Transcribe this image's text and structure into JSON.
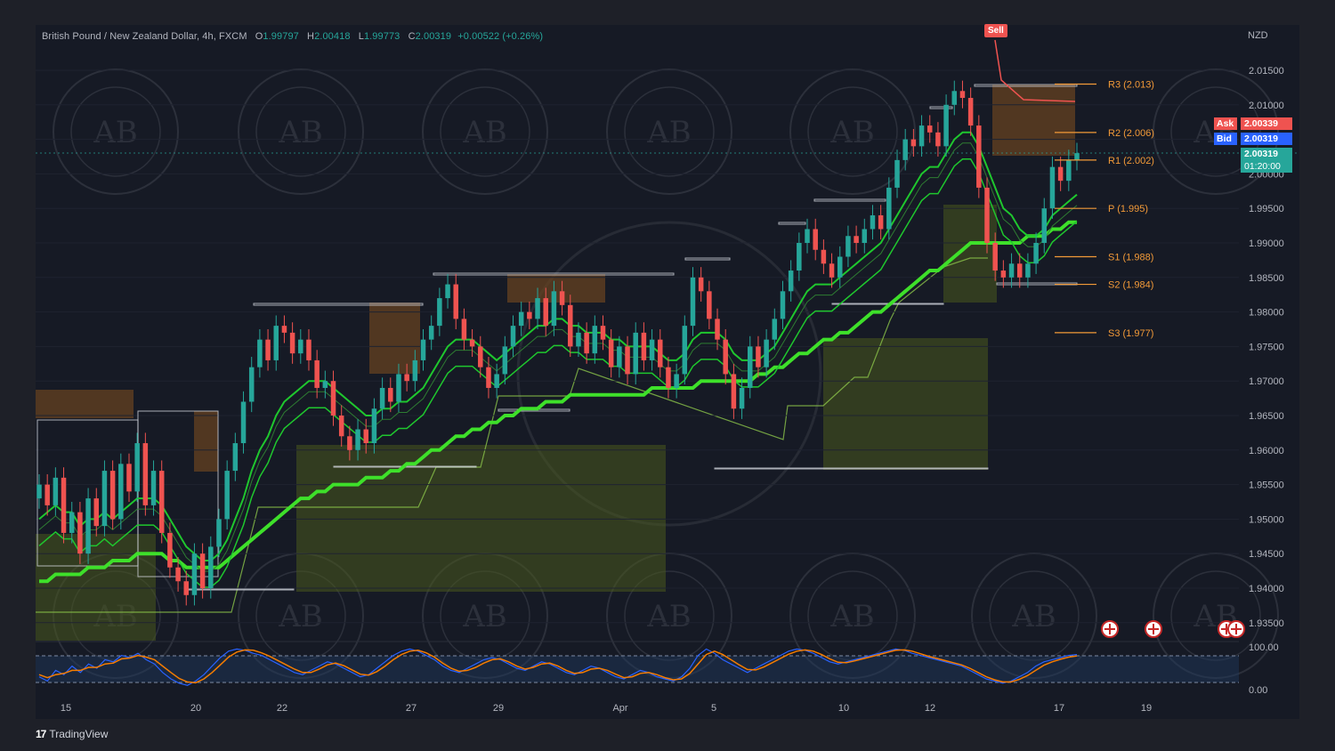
{
  "header": {
    "symbol": "British Pound / New Zealand Dollar, 4h, FXCM",
    "open_label": "O",
    "open": "1.99797",
    "high_label": "H",
    "high": "2.00418",
    "low_label": "L",
    "low": "1.99773",
    "close_label": "C",
    "close": "2.00319",
    "change": "+0.00522 (+0.26%)"
  },
  "currency": "NZD",
  "price_tags": {
    "ask_label": "Ask",
    "ask": "2.00339",
    "bid_label": "Bid",
    "bid": "2.00319",
    "last": "2.00319",
    "countdown": "01:20:00"
  },
  "sell_label": "Sell",
  "branding": {
    "logo_mark": "17",
    "name": "TradingView"
  },
  "watermark": {
    "text": "AB"
  },
  "colors": {
    "up": "#26a69a",
    "down": "#ef5350",
    "ema_fast": "#1fc72e",
    "ema_slow": "#3ee02a",
    "pivot": "#f29a38",
    "cloud_green": "#4a5a1e",
    "cloud_brown": "#6b4420",
    "stoch_k": "#2962ff",
    "stoch_d": "#f57c00"
  },
  "chart_data": {
    "type": "candlestick",
    "y_ticks": [
      "2.01500",
      "2.01000",
      "2.00500",
      "2.00000",
      "1.99500",
      "1.99000",
      "1.98500",
      "1.98000",
      "1.97500",
      "1.97000",
      "1.96500",
      "1.96000",
      "1.95500",
      "1.95000",
      "1.94500",
      "1.94000",
      "1.93500"
    ],
    "ylim": [
      1.932,
      2.0185
    ],
    "x_ticks": [
      "15",
      "20",
      "22",
      "27",
      "29",
      "Apr",
      "5",
      "10",
      "12",
      "17",
      "19"
    ],
    "pivots": [
      {
        "label": "R3 (2.013)",
        "value": 2.013
      },
      {
        "label": "R2 (2.006)",
        "value": 2.006
      },
      {
        "label": "R1 (2.002)",
        "value": 2.002
      },
      {
        "label": "P (1.995)",
        "value": 1.995
      },
      {
        "label": "S1 (1.988)",
        "value": 1.988
      },
      {
        "label": "S2 (1.984)",
        "value": 1.984
      },
      {
        "label": "S3 (1.977)",
        "value": 1.977
      }
    ],
    "price_path": [
      1.955,
      1.952,
      1.956,
      1.948,
      1.951,
      1.945,
      1.953,
      1.949,
      1.957,
      1.95,
      1.958,
      1.954,
      1.961,
      1.952,
      1.957,
      1.948,
      1.943,
      1.941,
      1.939,
      1.945,
      1.94,
      1.946,
      1.95,
      1.957,
      1.961,
      1.967,
      1.972,
      1.976,
      1.973,
      1.978,
      1.977,
      1.974,
      1.976,
      1.973,
      1.969,
      1.97,
      1.965,
      1.962,
      1.96,
      1.963,
      1.961,
      1.966,
      1.969,
      1.967,
      1.971,
      1.97,
      1.973,
      1.976,
      1.978,
      1.982,
      1.984,
      1.979,
      1.976,
      1.975,
      1.972,
      1.969,
      1.971,
      1.975,
      1.978,
      1.98,
      1.979,
      1.982,
      1.978,
      1.983,
      1.981,
      1.975,
      1.977,
      1.974,
      1.978,
      1.976,
      1.972,
      1.975,
      1.971,
      1.977,
      1.973,
      1.976,
      1.972,
      1.969,
      1.971,
      1.978,
      1.985,
      1.983,
      1.979,
      1.976,
      1.971,
      1.966,
      1.969,
      1.975,
      1.972,
      1.976,
      1.979,
      1.983,
      1.986,
      1.99,
      1.992,
      1.989,
      1.987,
      1.985,
      1.988,
      1.991,
      1.99,
      1.992,
      1.994,
      1.992,
      1.998,
      2.002,
      2.005,
      2.004,
      2.007,
      2.006,
      2.004,
      2.01,
      2.012,
      2.011,
      2.007,
      1.998,
      1.99,
      1.986,
      1.985,
      1.987,
      1.985,
      1.987,
      1.99,
      1.995,
      2.001,
      1.999,
      2.002,
      2.003
    ],
    "ema_fast": [
      1.95,
      1.951,
      1.952,
      1.951,
      1.951,
      1.949,
      1.95,
      1.95,
      1.951,
      1.95,
      1.951,
      1.952,
      1.953,
      1.953,
      1.953,
      1.952,
      1.95,
      1.948,
      1.946,
      1.945,
      1.944,
      1.944,
      1.945,
      1.947,
      1.95,
      1.953,
      1.957,
      1.96,
      1.962,
      1.965,
      1.967,
      1.968,
      1.969,
      1.97,
      1.97,
      1.97,
      1.969,
      1.968,
      1.967,
      1.966,
      1.965,
      1.965,
      1.966,
      1.966,
      1.967,
      1.967,
      1.968,
      1.969,
      1.971,
      1.973,
      1.975,
      1.976,
      1.976,
      1.976,
      1.975,
      1.974,
      1.973,
      1.974,
      1.975,
      1.976,
      1.977,
      1.978,
      1.978,
      1.979,
      1.979,
      1.978,
      1.978,
      1.977,
      1.977,
      1.977,
      1.976,
      1.976,
      1.975,
      1.975,
      1.975,
      1.975,
      1.974,
      1.973,
      1.973,
      1.974,
      1.976,
      1.977,
      1.977,
      1.977,
      1.976,
      1.974,
      1.973,
      1.973,
      1.973,
      1.974,
      1.975,
      1.977,
      1.979,
      1.981,
      1.983,
      1.984,
      1.984,
      1.984,
      1.985,
      1.986,
      1.987,
      1.988,
      1.989,
      1.99,
      1.992,
      1.994,
      1.996,
      1.998,
      2.0,
      2.001,
      2.001,
      2.003,
      2.005,
      2.006,
      2.006,
      2.004,
      2.001,
      1.998,
      1.995,
      1.994,
      1.992,
      1.991,
      1.991,
      1.992,
      1.994,
      1.995,
      1.996,
      1.997
    ],
    "ema_slow": [
      1.941,
      1.941,
      1.942,
      1.942,
      1.942,
      1.942,
      1.943,
      1.943,
      1.943,
      1.944,
      1.944,
      1.944,
      1.945,
      1.945,
      1.945,
      1.945,
      1.944,
      1.944,
      1.943,
      1.943,
      1.943,
      1.943,
      1.943,
      1.944,
      1.945,
      1.946,
      1.947,
      1.948,
      1.949,
      1.95,
      1.951,
      1.952,
      1.953,
      1.953,
      1.954,
      1.954,
      1.955,
      1.955,
      1.955,
      1.955,
      1.956,
      1.956,
      1.956,
      1.957,
      1.957,
      1.958,
      1.958,
      1.959,
      1.96,
      1.96,
      1.961,
      1.962,
      1.962,
      1.963,
      1.963,
      1.964,
      1.964,
      1.965,
      1.965,
      1.966,
      1.966,
      1.966,
      1.967,
      1.967,
      1.967,
      1.968,
      1.968,
      1.968,
      1.968,
      1.968,
      1.968,
      1.968,
      1.968,
      1.968,
      1.968,
      1.969,
      1.969,
      1.969,
      1.969,
      1.969,
      1.969,
      1.97,
      1.97,
      1.97,
      1.97,
      1.97,
      1.97,
      1.97,
      1.971,
      1.971,
      1.972,
      1.972,
      1.973,
      1.974,
      1.974,
      1.975,
      1.976,
      1.976,
      1.977,
      1.977,
      1.978,
      1.979,
      1.98,
      1.98,
      1.981,
      1.982,
      1.983,
      1.984,
      1.985,
      1.986,
      1.986,
      1.987,
      1.988,
      1.989,
      1.99,
      1.99,
      1.99,
      1.99,
      1.99,
      1.99,
      1.99,
      1.991,
      1.991,
      1.991,
      1.992,
      1.992,
      1.993,
      1.993
    ],
    "stochastic": {
      "ylim": [
        0,
        100
      ],
      "y_ticks": [
        "100.00",
        "0.00"
      ],
      "k_values": [
        30,
        20,
        45,
        35,
        55,
        40,
        60,
        50,
        70,
        65,
        80,
        75,
        85,
        70,
        60,
        40,
        25,
        15,
        10,
        20,
        35,
        55,
        75,
        90,
        95,
        92,
        85,
        80,
        70,
        60,
        50,
        40,
        35,
        45,
        55,
        65,
        60,
        50,
        40,
        30,
        35,
        50,
        65,
        80,
        90,
        95,
        90,
        80,
        70,
        55,
        45,
        40,
        50,
        60,
        70,
        75,
        70,
        60,
        50,
        45,
        55,
        65,
        60,
        50,
        40,
        35,
        45,
        55,
        50,
        40,
        30,
        25,
        35,
        45,
        40,
        30,
        25,
        20,
        30,
        50,
        80,
        95,
        85,
        70,
        60,
        50,
        40,
        50,
        60,
        70,
        80,
        90,
        95,
        92,
        85,
        75,
        65,
        60,
        65,
        70,
        75,
        80,
        85,
        90,
        95,
        92,
        85,
        80,
        75,
        70,
        65,
        60,
        55,
        45,
        35,
        25,
        20,
        15,
        20,
        30,
        40,
        55,
        65,
        70,
        75,
        80,
        82
      ],
      "d_values": [
        35,
        28,
        35,
        38,
        45,
        45,
        52,
        52,
        60,
        62,
        72,
        74,
        80,
        76,
        70,
        55,
        40,
        26,
        18,
        16,
        25,
        40,
        58,
        76,
        88,
        93,
        92,
        86,
        78,
        68,
        58,
        48,
        40,
        40,
        48,
        58,
        62,
        56,
        46,
        36,
        34,
        42,
        55,
        70,
        82,
        90,
        92,
        86,
        76,
        62,
        50,
        43,
        45,
        52,
        62,
        70,
        72,
        65,
        55,
        48,
        52,
        60,
        62,
        55,
        45,
        38,
        40,
        48,
        50,
        45,
        36,
        28,
        30,
        38,
        40,
        35,
        28,
        23,
        25,
        38,
        60,
        82,
        90,
        82,
        70,
        58,
        47,
        46,
        53,
        63,
        73,
        83,
        90,
        93,
        90,
        82,
        72,
        64,
        63,
        67,
        72,
        77,
        82,
        87,
        92,
        93,
        90,
        84,
        78,
        73,
        68,
        63,
        58,
        50,
        40,
        30,
        23,
        18,
        18,
        24,
        33,
        45,
        57,
        65,
        71,
        76,
        79
      ]
    }
  }
}
